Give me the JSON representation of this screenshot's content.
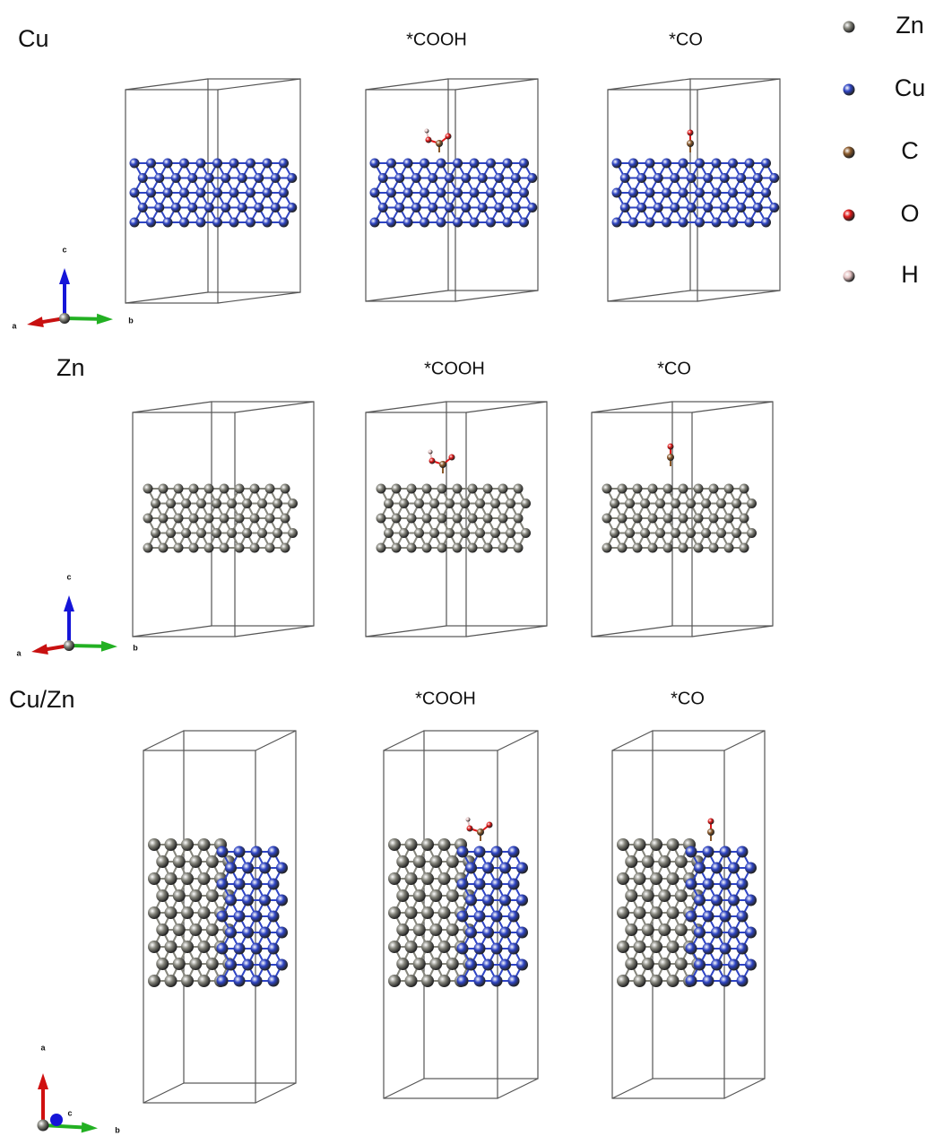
{
  "rows": [
    {
      "label": "Cu",
      "panels": [
        "*COOH",
        "*CO"
      ],
      "axis_labels": {
        "left": "a",
        "up": "c",
        "right": "b"
      }
    },
    {
      "label": "Zn",
      "panels": [
        "*COOH",
        "*CO"
      ],
      "axis_labels": {
        "left": "a",
        "up": "c",
        "right": "b"
      }
    },
    {
      "label": "Cu/Zn",
      "panels": [
        "*COOH",
        "*CO"
      ],
      "axis_labels": {
        "up": "a",
        "mid": "c",
        "right": "b"
      }
    }
  ],
  "legend": [
    {
      "label": "Zn",
      "color": "#85857c"
    },
    {
      "label": "Cu",
      "color": "#2f45c4"
    },
    {
      "label": "C",
      "color": "#8b5a2b"
    },
    {
      "label": "O",
      "color": "#e01818"
    },
    {
      "label": "H",
      "color": "#e6c4c4"
    }
  ]
}
